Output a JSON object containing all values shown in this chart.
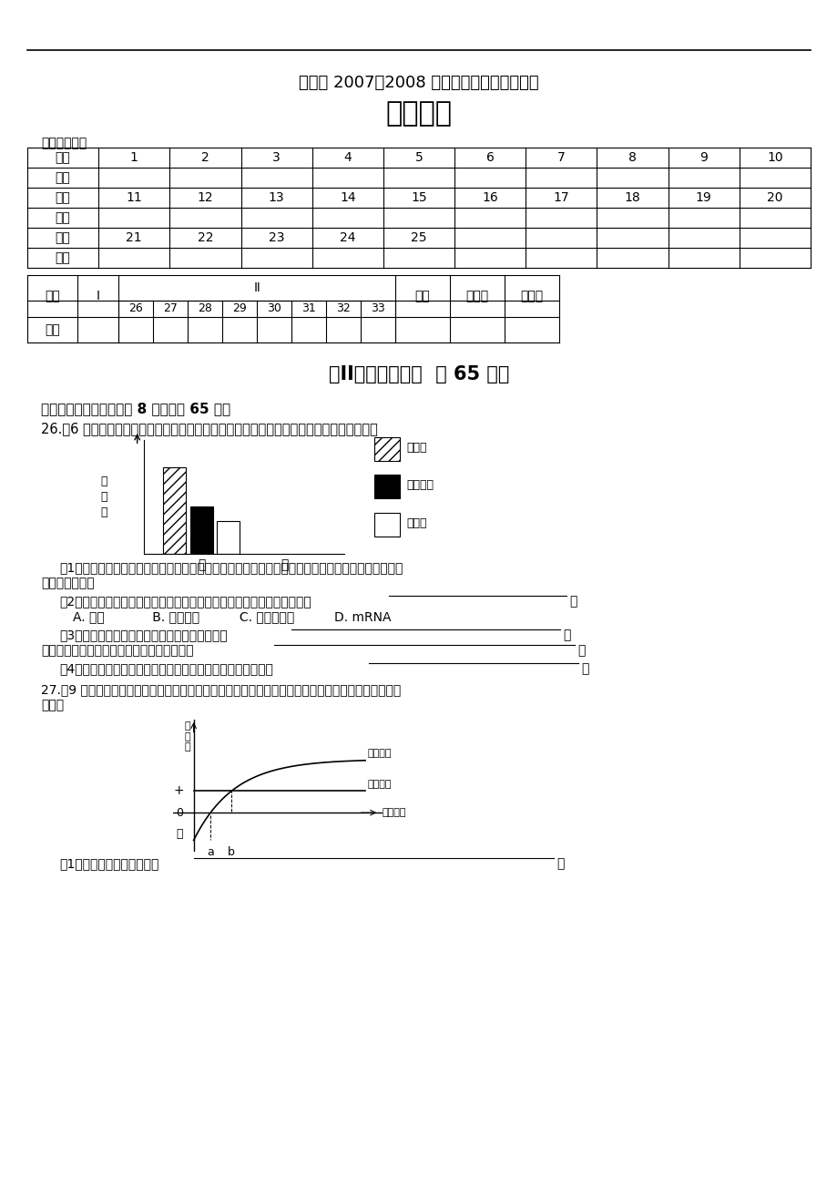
{
  "title_subtitle": "赣榆县 2007～2008 学年度高三复习模拟检测",
  "title_main": "生物试题",
  "table1_label": "选择题答题表",
  "section_header": "第II卷（非选择题  共 65 分）",
  "nonselect_label": "三、非选择题：本题包括 8 小题，共 65 分。",
  "q26_text": "26.（6 分）下图示某细胞在进行分泌蛋白的合成和分泌前几种生物膜的面积。请据图回答。",
  "bar_ylabel": "膜\n面\n积",
  "bar_xlabel_qian": "前",
  "bar_xlabel_hou": "后",
  "legend_items": [
    "内质网",
    "高尔基体",
    "细胞膜"
  ],
  "q26_q1_a": "（1）请在所给坐标上（上图中）绘制柱形图，以表示细胞在进行分泌蛋白的合成和分泌后这几种生物",
  "q26_q1_b": "膜的面积变化。",
  "q26_q2_text": "（2）该生命活动前后这几种生物膜面积变化过程中，最可能合成的物质是",
  "q26_q2_options": "A. 抗体            B. 雌性激素          C. 呼吸氧化酶          D. mRNA",
  "q26_q3a_text": "（3）相比而言，内质网的膜面积最大，其意义是",
  "q26_q3b_text": "在分泌蛋白的合成和分泌中，内质网的作用是",
  "q26_q4_text": "（4）在合成旺盛的细胞内，可与内质网膜直接相连的生物膜有",
  "q27_text_a": "27.（9 分）下图是某生物学研究小组以一种绿色植物为材料进行研究得到的实验研究结果。试回答相关",
  "q27_text_b": "问题：",
  "curve_label_photosyn": "光合速率",
  "curve_label_respir": "呼吸速率",
  "curve_xlabel": "光照强度",
  "q27_q1_text": "（1）试为实验结果图命名：",
  "bg_color": "#ffffff"
}
